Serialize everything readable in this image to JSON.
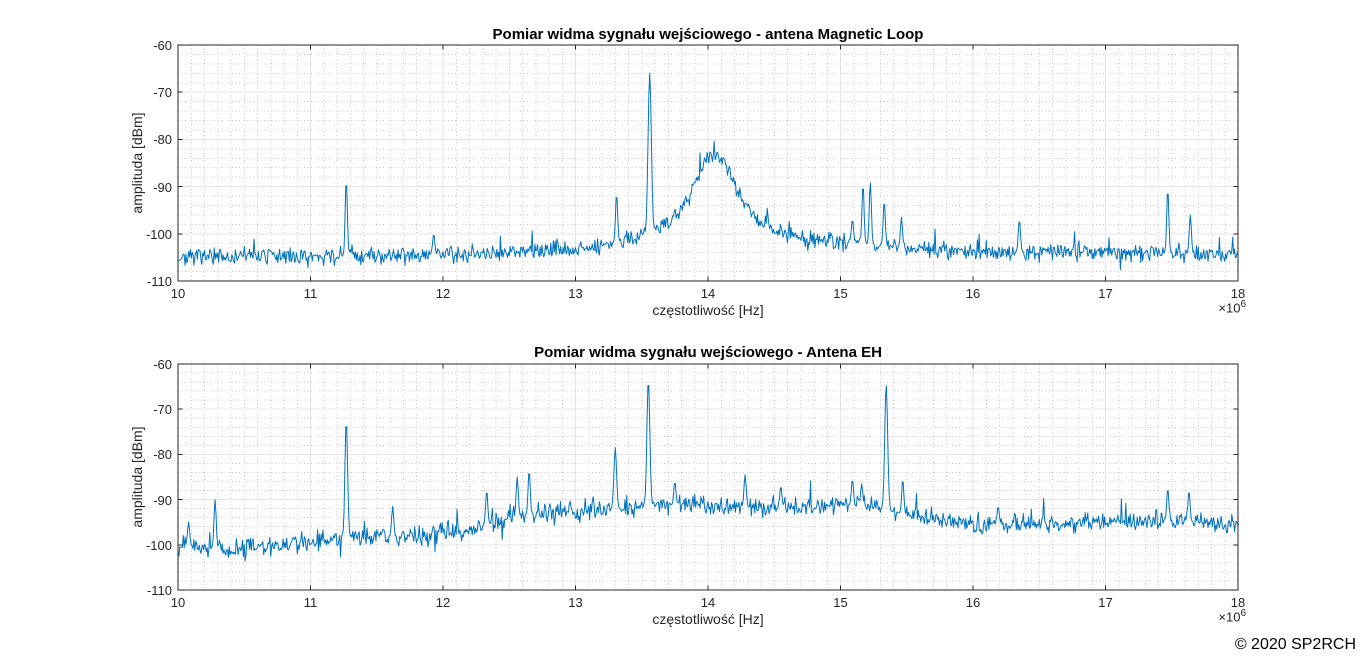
{
  "page": {
    "background": "#ffffff",
    "copyright": "© 2020 SP2RCH"
  },
  "style": {
    "trace_color": "#0072BD",
    "axes_color": "#262626",
    "grid_major_color": "#e4e4e4",
    "grid_minor_color": "#ababab",
    "tick_length": 4.5
  },
  "chart_data": [
    {
      "type": "line",
      "title": "Pomiar widma sygnału wejściowego - antena Magnetic Loop",
      "xlabel": "częstotliwość [Hz]",
      "ylabel": "amplituda [dBm]",
      "x_exponent": {
        "base": "×10",
        "power": "6"
      },
      "xlim": [
        10,
        18
      ],
      "ylim": [
        -110,
        -60
      ],
      "x_ticks": [
        10,
        11,
        12,
        13,
        14,
        15,
        16,
        17,
        18
      ],
      "y_ticks": [
        -110,
        -100,
        -90,
        -80,
        -70,
        -60
      ],
      "x_minor_step": 0.1,
      "y_minor_step": 2,
      "legend": "none",
      "seed": 7,
      "noise_amp": 1.8,
      "spike_prob": 0.012,
      "spike_max": 4,
      "dip_prob": 0.012,
      "dip_max": 3,
      "noise_floor": [
        [
          10,
          -105
        ],
        [
          11,
          -105
        ],
        [
          12,
          -104.5
        ],
        [
          13,
          -104
        ],
        [
          13.5,
          -103.2
        ],
        [
          14.5,
          -103
        ],
        [
          15,
          -102.5
        ],
        [
          15.5,
          -103.5
        ],
        [
          16,
          -104
        ],
        [
          17,
          -104
        ],
        [
          18,
          -104.5
        ]
      ],
      "humps": [
        {
          "x": 14.05,
          "y_peak": -83,
          "gamma": 0.22
        }
      ],
      "peaks": [
        {
          "x": 11.27,
          "y": -88.5
        },
        {
          "x": 11.93,
          "y": -100
        },
        {
          "x": 13.31,
          "y": -91.5
        },
        {
          "x": 13.56,
          "y": -66,
          "w": 0.012
        },
        {
          "x": 15.09,
          "y": -97
        },
        {
          "x": 15.17,
          "y": -89.5
        },
        {
          "x": 15.225,
          "y": -89
        },
        {
          "x": 15.33,
          "y": -93
        },
        {
          "x": 15.46,
          "y": -96.5
        },
        {
          "x": 16.35,
          "y": -97
        },
        {
          "x": 17.47,
          "y": -90.5
        },
        {
          "x": 17.64,
          "y": -96
        }
      ]
    },
    {
      "type": "line",
      "title": "Pomiar widma sygnału wejściowego - Antena EH",
      "xlabel": "częstotliwość [Hz]",
      "ylabel": "amplituda [dBm]",
      "x_exponent": {
        "base": "×10",
        "power": "6"
      },
      "xlim": [
        10,
        18
      ],
      "ylim": [
        -110,
        -60
      ],
      "x_ticks": [
        10,
        11,
        12,
        13,
        14,
        15,
        16,
        17,
        18
      ],
      "y_ticks": [
        -110,
        -100,
        -90,
        -80,
        -70,
        -60
      ],
      "x_minor_step": 0.1,
      "y_minor_step": 2,
      "legend": "none",
      "seed": 23,
      "noise_amp": 2.0,
      "spike_prob": 0.03,
      "spike_max": 5,
      "dip_prob": 0.02,
      "dip_max": 4,
      "noise_floor": [
        [
          10,
          -100
        ],
        [
          10.4,
          -101
        ],
        [
          10.8,
          -100
        ],
        [
          11.3,
          -98.5
        ],
        [
          11.8,
          -98
        ],
        [
          12.2,
          -96.5
        ],
        [
          12.6,
          -93.5
        ],
        [
          13.0,
          -92.5
        ],
        [
          13.4,
          -92
        ],
        [
          13.8,
          -91
        ],
        [
          14.2,
          -91.5
        ],
        [
          14.6,
          -92
        ],
        [
          15.0,
          -91
        ],
        [
          15.3,
          -92
        ],
        [
          15.6,
          -94
        ],
        [
          16.0,
          -95.5
        ],
        [
          16.6,
          -95.5
        ],
        [
          17.2,
          -94.5
        ],
        [
          17.7,
          -95
        ],
        [
          18,
          -95.5
        ]
      ],
      "humps": [],
      "peaks": [
        {
          "x": 10.08,
          "y": -95
        },
        {
          "x": 10.28,
          "y": -90
        },
        {
          "x": 11.27,
          "y": -72.5,
          "w": 0.01
        },
        {
          "x": 11.62,
          "y": -91.5
        },
        {
          "x": 12.33,
          "y": -88
        },
        {
          "x": 12.56,
          "y": -85
        },
        {
          "x": 12.65,
          "y": -83.5
        },
        {
          "x": 13.3,
          "y": -78.5,
          "w": 0.01
        },
        {
          "x": 13.55,
          "y": -63.5,
          "w": 0.011
        },
        {
          "x": 13.75,
          "y": -86
        },
        {
          "x": 14.28,
          "y": -84.5
        },
        {
          "x": 14.55,
          "y": -87
        },
        {
          "x": 15.09,
          "y": -85.5
        },
        {
          "x": 15.16,
          "y": -86.5
        },
        {
          "x": 15.345,
          "y": -64.5,
          "w": 0.011
        },
        {
          "x": 15.47,
          "y": -85.5
        },
        {
          "x": 16.19,
          "y": -91.5
        },
        {
          "x": 17.47,
          "y": -87.5
        },
        {
          "x": 17.63,
          "y": -88
        }
      ]
    }
  ]
}
